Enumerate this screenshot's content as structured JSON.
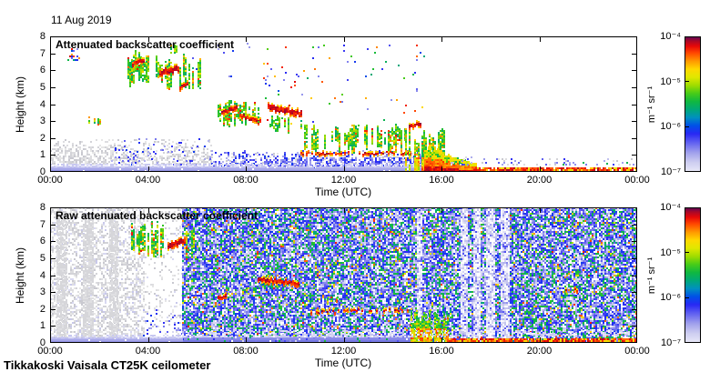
{
  "header": {
    "date": "11 Aug 2019"
  },
  "footer": {
    "instrument": "Tikkakoski Vaisala CT25K ceilometer"
  },
  "colormap_stops": [
    [
      0.0,
      "#e8e8f8"
    ],
    [
      0.07,
      "#ccccf0"
    ],
    [
      0.14,
      "#a0a0ec"
    ],
    [
      0.21,
      "#6464f0"
    ],
    [
      0.28,
      "#2828f4"
    ],
    [
      0.34,
      "#0050e8"
    ],
    [
      0.4,
      "#0090c0"
    ],
    [
      0.46,
      "#00a878"
    ],
    [
      0.52,
      "#10b840"
    ],
    [
      0.58,
      "#48cc18"
    ],
    [
      0.64,
      "#a0dc00"
    ],
    [
      0.7,
      "#e0e800"
    ],
    [
      0.76,
      "#ffd800"
    ],
    [
      0.82,
      "#ff9800"
    ],
    [
      0.88,
      "#ff4800"
    ],
    [
      0.93,
      "#e80808"
    ],
    [
      0.97,
      "#a80828"
    ],
    [
      1.0,
      "#5c0458"
    ]
  ],
  "chart_data": [
    {
      "type": "heatmap",
      "title": "Attenuated backscatter coefficient",
      "xlabel": "Time (UTC)",
      "ylabel": "Height (km)",
      "x_ticks": [
        "00:00",
        "04:00",
        "08:00",
        "12:00",
        "16:00",
        "20:00",
        "00:00"
      ],
      "x_range_hours": [
        0,
        24
      ],
      "y_ticks": [
        "0",
        "1",
        "2",
        "3",
        "4",
        "5",
        "6",
        "7",
        "8"
      ],
      "y_range_km": [
        0,
        8
      ],
      "colorbar": {
        "ticks": [
          "10⁻⁴",
          "10⁻⁵",
          "10⁻⁶",
          "10⁻⁷"
        ],
        "unit": "m⁻¹ sr⁻¹",
        "scale": "log",
        "range": [
          "1e-7",
          "1e-4"
        ]
      },
      "features": [
        {
          "kind": "speckle",
          "palette": "gray",
          "t": [
            0,
            6.6
          ],
          "h": [
            0.45,
            1.95
          ],
          "density": 0.6,
          "fade": 0.8
        },
        {
          "kind": "speckle",
          "palette": "gray",
          "t": [
            0,
            3.2
          ],
          "h": [
            0.45,
            1.6
          ],
          "density": 0.35,
          "fade": 0.5
        },
        {
          "kind": "speckle",
          "palette": "gray",
          "t": [
            6.6,
            15.5
          ],
          "h": [
            0.45,
            1.15
          ],
          "density": 0.25,
          "fade": 0.6
        },
        {
          "kind": "speckle",
          "palette": "blue",
          "t": [
            2.5,
            6.6
          ],
          "h": [
            0.4,
            2.0
          ],
          "density": 0.15,
          "fade": 0.7
        },
        {
          "kind": "speckle",
          "palette": "blue",
          "t": [
            6.6,
            15.6
          ],
          "h": [
            0.35,
            1.3
          ],
          "density": 0.55,
          "fade": 0.75
        },
        {
          "kind": "speckle",
          "palette": "blue",
          "t": [
            9.5,
            15.6
          ],
          "h": [
            0.3,
            0.85
          ],
          "density": 0.45,
          "fade": 0
        },
        {
          "kind": "solid_band",
          "t": [
            0,
            15.6
          ],
          "h": [
            0,
            0.3
          ],
          "edge": 0.2
        },
        {
          "kind": "specks",
          "palette": "mixed",
          "t": [
            0.7,
            1.2
          ],
          "h": [
            6.6,
            7.3
          ],
          "density": 0.3
        },
        {
          "kind": "streak_cluster",
          "t": [
            1.55,
            2.05
          ],
          "h": [
            2.8,
            3.35
          ],
          "density": 0.5,
          "warm": 0.3
        },
        {
          "kind": "streak_cluster",
          "t": [
            3.15,
            4.0
          ],
          "h": [
            5.0,
            7.3
          ],
          "density": 0.75,
          "warm": 0.25
        },
        {
          "kind": "red_line",
          "t": [
            3.35,
            3.8
          ],
          "h": [
            6.35,
            6.6
          ],
          "thick": 0.18
        },
        {
          "kind": "streak_cluster",
          "t": [
            4.3,
            6.1
          ],
          "h": [
            4.7,
            7.0
          ],
          "density": 0.7,
          "warm": 0.2
        },
        {
          "kind": "streak_cluster",
          "t": [
            4.9,
            5.15
          ],
          "h": [
            6.8,
            7.55
          ],
          "density": 0.6,
          "warm": 0.3
        },
        {
          "kind": "red_line",
          "t": [
            4.45,
            5.25
          ],
          "h": [
            5.85,
            6.15
          ],
          "thick": 0.3
        },
        {
          "kind": "red_line",
          "t": [
            5.3,
            5.65
          ],
          "h": [
            5.0,
            5.3
          ],
          "thick": 0.2
        },
        {
          "kind": "streak_cluster",
          "t": [
            6.85,
            8.65
          ],
          "h": [
            2.5,
            4.3
          ],
          "density": 0.7,
          "warm": 0.2
        },
        {
          "kind": "red_line",
          "t": [
            7.0,
            7.6
          ],
          "h": [
            3.55,
            3.75
          ],
          "thick": 0.2
        },
        {
          "kind": "red_line",
          "t": [
            7.75,
            8.6
          ],
          "h": [
            3.35,
            2.95
          ],
          "thick": 0.2
        },
        {
          "kind": "red_line",
          "t": [
            8.9,
            10.25
          ],
          "h": [
            3.85,
            3.45
          ],
          "thick": 0.28
        },
        {
          "kind": "streak_cluster",
          "t": [
            8.9,
            10.3
          ],
          "h": [
            2.3,
            3.5
          ],
          "density": 0.5,
          "warm": 0.15
        },
        {
          "kind": "specks",
          "palette": "mixed",
          "t": [
            8.5,
            15.3
          ],
          "h": [
            2.6,
            7.6
          ],
          "density": 0.018
        },
        {
          "kind": "specks",
          "palette": "blue",
          "t": [
            5.8,
            9.0
          ],
          "h": [
            5.0,
            7.6
          ],
          "density": 0.012
        },
        {
          "kind": "streak_cluster",
          "t": [
            10.3,
            14.6
          ],
          "h": [
            1.15,
            2.9
          ],
          "density": 0.55,
          "warm": 0.25
        },
        {
          "kind": "red_line",
          "t": [
            10.25,
            14.75
          ],
          "h": [
            1.05,
            1.1
          ],
          "thick": 0.14,
          "dotted": 0.35
        },
        {
          "kind": "rain_columns",
          "t": [
            14.5,
            16.1
          ],
          "h_top": [
            1.8,
            3.3
          ]
        },
        {
          "kind": "red_line",
          "t": [
            14.65,
            15.15
          ],
          "h": [
            2.65,
            2.85
          ],
          "thick": 0.25
        },
        {
          "kind": "wedge",
          "t": [
            15.3,
            17.4
          ],
          "h_top": [
            1.6,
            0.5
          ]
        },
        {
          "kind": "warm_band",
          "t": [
            17.3,
            24
          ],
          "h": [
            0.06,
            0.38
          ]
        },
        {
          "kind": "speckle",
          "palette": "bluegray",
          "t": [
            16.3,
            24
          ],
          "h": [
            0.4,
            0.9
          ],
          "density": 0.3,
          "fade": 0.8
        }
      ]
    },
    {
      "type": "heatmap",
      "title": "Raw attenuated backscatter coefficient",
      "xlabel": "Time (UTC)",
      "ylabel": "Height (km)",
      "x_ticks": [
        "00:00",
        "04:00",
        "08:00",
        "12:00",
        "16:00",
        "20:00",
        "00:00"
      ],
      "x_range_hours": [
        0,
        24
      ],
      "y_ticks": [
        "0",
        "1",
        "2",
        "3",
        "4",
        "5",
        "6",
        "7",
        "8"
      ],
      "y_range_km": [
        0,
        8
      ],
      "colorbar": {
        "ticks": [
          "10⁻⁴",
          "10⁻⁵",
          "10⁻⁶",
          "10⁻⁷"
        ],
        "unit": "m⁻¹ sr⁻¹",
        "scale": "log",
        "range": [
          "1e-7",
          "1e-4"
        ]
      },
      "features": [
        {
          "kind": "speckle",
          "palette": "graylav",
          "t": [
            0,
            3.8
          ],
          "h": [
            0.3,
            8
          ],
          "density": 0.5,
          "fade": 0.15
        },
        {
          "kind": "gray_columns",
          "cols": [
            [
              0.25,
              0.65
            ],
            [
              1.35,
              1.75
            ],
            [
              2.4,
              2.75
            ]
          ],
          "h": [
            0,
            7.6
          ]
        },
        {
          "kind": "speckle",
          "palette": "graylav",
          "t": [
            3.8,
            5.4
          ],
          "h": [
            0.3,
            8
          ],
          "density": 0.14,
          "fade": 0
        },
        {
          "kind": "speckle",
          "palette": "blue",
          "t": [
            3.8,
            5.4
          ],
          "h": [
            0,
            2
          ],
          "density": 0.12,
          "fade": 0.5
        },
        {
          "kind": "noise",
          "t": [
            5.4,
            24
          ],
          "h": [
            0,
            8
          ],
          "density": 0.88,
          "light_cols": [
            [
              14.95,
              15.2
            ],
            [
              16.75,
              17.05
            ],
            [
              17.3,
              17.6
            ],
            [
              17.8,
              18.15
            ],
            [
              18.35,
              18.75
            ]
          ]
        },
        {
          "kind": "streak_cluster",
          "t": [
            3.3,
            4.6
          ],
          "h": [
            5.0,
            7.3
          ],
          "density": 0.6,
          "warm": 0.3
        },
        {
          "kind": "streak_cluster",
          "t": [
            5.4,
            6.2
          ],
          "h": [
            4.9,
            7.0
          ],
          "density": 0.5,
          "warm": 0.35
        },
        {
          "kind": "red_line",
          "t": [
            4.8,
            5.5
          ],
          "h": [
            5.75,
            6.05
          ],
          "thick": 0.3
        },
        {
          "kind": "red_line",
          "t": [
            6.85,
            7.15
          ],
          "h": [
            2.7,
            2.75
          ],
          "thick": 0.18
        },
        {
          "kind": "red_line",
          "t": [
            8.5,
            10.15
          ],
          "h": [
            3.75,
            3.5
          ],
          "thick": 0.22
        },
        {
          "kind": "streak_cluster",
          "t": [
            11.3,
            11.75
          ],
          "h": [
            2.1,
            3.0
          ],
          "density": 0.5,
          "warm": 0.5
        },
        {
          "kind": "red_line",
          "t": [
            10.5,
            14.75
          ],
          "h": [
            1.8,
            1.95
          ],
          "thick": 0.14,
          "dotted": 0.55
        },
        {
          "kind": "solid_band",
          "t": [
            5.4,
            14.75
          ],
          "h": [
            0,
            0.35
          ],
          "edge": 0.1,
          "dark": true
        },
        {
          "kind": "rain_columns",
          "t": [
            14.75,
            16.3
          ],
          "h_top": [
            1.2,
            2.3
          ]
        },
        {
          "kind": "solid_band",
          "t": [
            0,
            5.4
          ],
          "h": [
            0,
            0.3
          ],
          "edge": 0.2
        },
        {
          "kind": "speckle",
          "palette": "lavender",
          "t": [
            5.4,
            24
          ],
          "h": [
            0.35,
            0.75
          ],
          "density": 0.45,
          "fade": 0.3
        },
        {
          "kind": "warm_band",
          "t": [
            16.3,
            24
          ],
          "h": [
            0.05,
            0.33
          ]
        },
        {
          "kind": "red_line",
          "t": [
            21.05,
            21.55
          ],
          "h": [
            3.05,
            3.1
          ],
          "thick": 0.16,
          "dotted": 0.3
        }
      ]
    }
  ]
}
